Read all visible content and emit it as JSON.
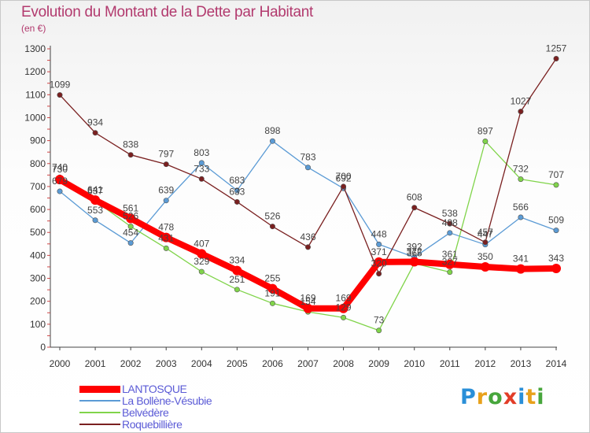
{
  "title": "Evolution du Montant de la Dette par Habitant",
  "unit": "(en €)",
  "logo": {
    "text": "Proxiti",
    "colors": [
      "#2a8fd8",
      "#e8a11b",
      "#47a63c",
      "#e23d28",
      "#2a8fd8",
      "#e8a11b",
      "#47a63c"
    ]
  },
  "chart_data": {
    "type": "line",
    "title": "Evolution du Montant de la Dette par Habitant",
    "ylabel": "(en €)",
    "xlabel": "",
    "x": [
      "2000",
      "2001",
      "2002",
      "2003",
      "2004",
      "2005",
      "2006",
      "2007",
      "2008",
      "2009",
      "2010",
      "2011",
      "2012",
      "2013",
      "2014"
    ],
    "ylim": [
      0,
      1300
    ],
    "yticks": [
      0,
      100,
      200,
      300,
      400,
      500,
      600,
      700,
      800,
      900,
      1000,
      1100,
      1200,
      1300
    ],
    "grid": false,
    "legend_position": "bottom-left",
    "series": [
      {
        "name": "LANTOSQUE",
        "color": "#ff0000",
        "values": [
          730,
          641,
          561,
          478,
          407,
          334,
          255,
          169,
          169,
          371,
          372,
          361,
          350,
          341,
          343
        ],
        "labels": [
          "730",
          "641",
          "561",
          "478",
          "407",
          "334",
          "255",
          "169",
          "169",
          "371",
          "372",
          "361",
          "350",
          "341",
          "343"
        ]
      },
      {
        "name": "La Bollène-Vésubie",
        "color": "#5b9bd5",
        "values": [
          679,
          553,
          454,
          639,
          803,
          683,
          898,
          783,
          692,
          448,
          392,
          498,
          447,
          566,
          509
        ],
        "labels": [
          "679",
          "553",
          "454",
          "639",
          "803",
          "683",
          "898",
          "783",
          "692",
          "448",
          "392",
          "498",
          "447",
          "566",
          "509"
        ]
      },
      {
        "name": "Belvédère",
        "color": "#80d44a",
        "values": [
          740,
          637,
          526,
          431,
          329,
          251,
          191,
          154,
          129,
          73,
          365,
          327,
          897,
          732,
          707
        ],
        "labels": [
          "740",
          "637",
          "526",
          "431",
          "329",
          "251",
          "191",
          "154",
          "129",
          "73",
          "365",
          "327",
          "897",
          "732",
          "707"
        ]
      },
      {
        "name": "Roquebillière",
        "color": "#7a2020",
        "values": [
          1099,
          934,
          838,
          797,
          733,
          633,
          526,
          436,
          700,
          320,
          608,
          538,
          457,
          1027,
          1257
        ],
        "labels": [
          "1099",
          "934",
          "838",
          "797",
          "733",
          "633",
          "526",
          "436",
          "700",
          "320",
          "608",
          "538",
          "457",
          "1027",
          "1257"
        ]
      }
    ]
  }
}
